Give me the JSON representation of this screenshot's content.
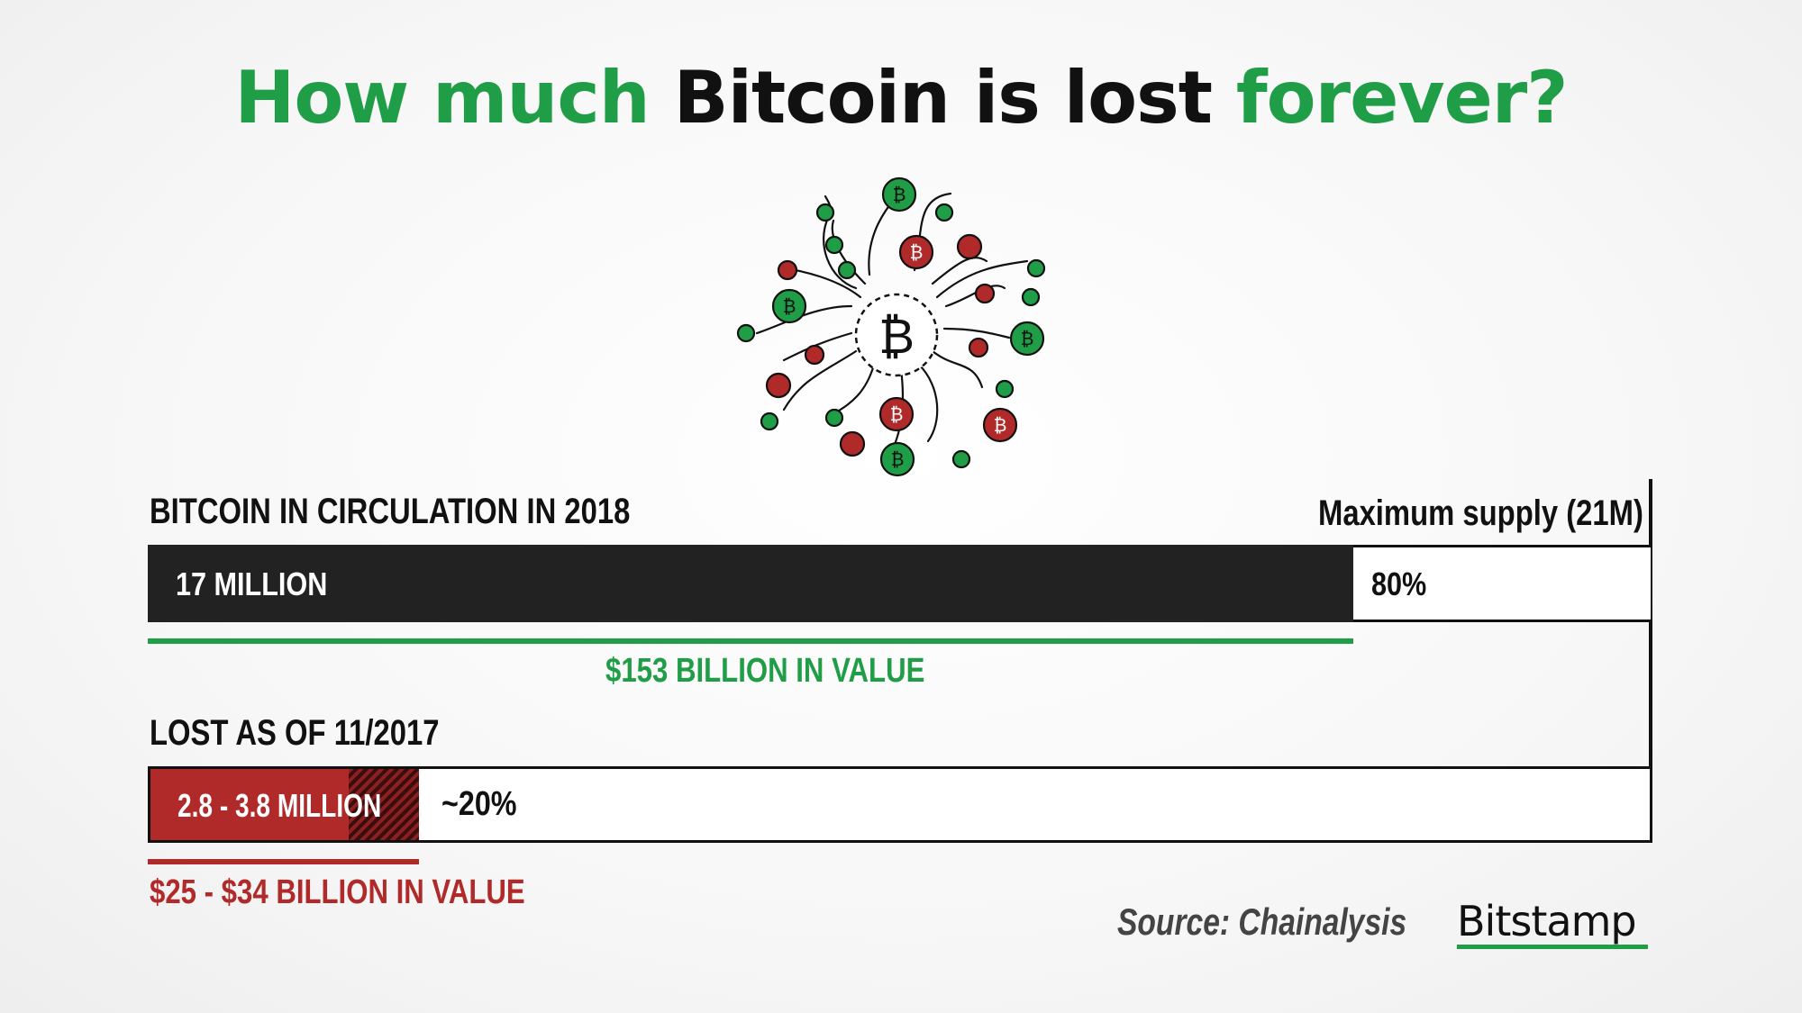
{
  "title": {
    "part1": "How much ",
    "part2": "Bitcoin is lost ",
    "part3": "forever?"
  },
  "colors": {
    "green": "#1f9d47",
    "red": "#b02a2a",
    "dark": "#222222"
  },
  "illustration": {
    "icon": "bitcoin-network-icon",
    "center_symbol": "₿"
  },
  "chart_data": {
    "type": "bar",
    "max_supply_label": "Maximum supply (21M)",
    "series": [
      {
        "heading": "BITCOIN IN CIRCULATION IN 2018",
        "bar_label": "17 MILLION",
        "remainder_label": "80%",
        "value_label": "$153 BILLION IN VALUE",
        "value": 17,
        "max": 21,
        "color": "#222222"
      },
      {
        "heading": "LOST AS OF 11/2017",
        "bar_label": "2.8 - 3.8  MILLION",
        "remainder_label": "~20%",
        "value_label": "$25 - $34 BILLION IN VALUE",
        "value_range": [
          2.8,
          3.8
        ],
        "max": 21,
        "color": "#b02a2a"
      }
    ]
  },
  "footer": {
    "source": "Source: Chainalysis",
    "brand": "Bitstamp"
  }
}
